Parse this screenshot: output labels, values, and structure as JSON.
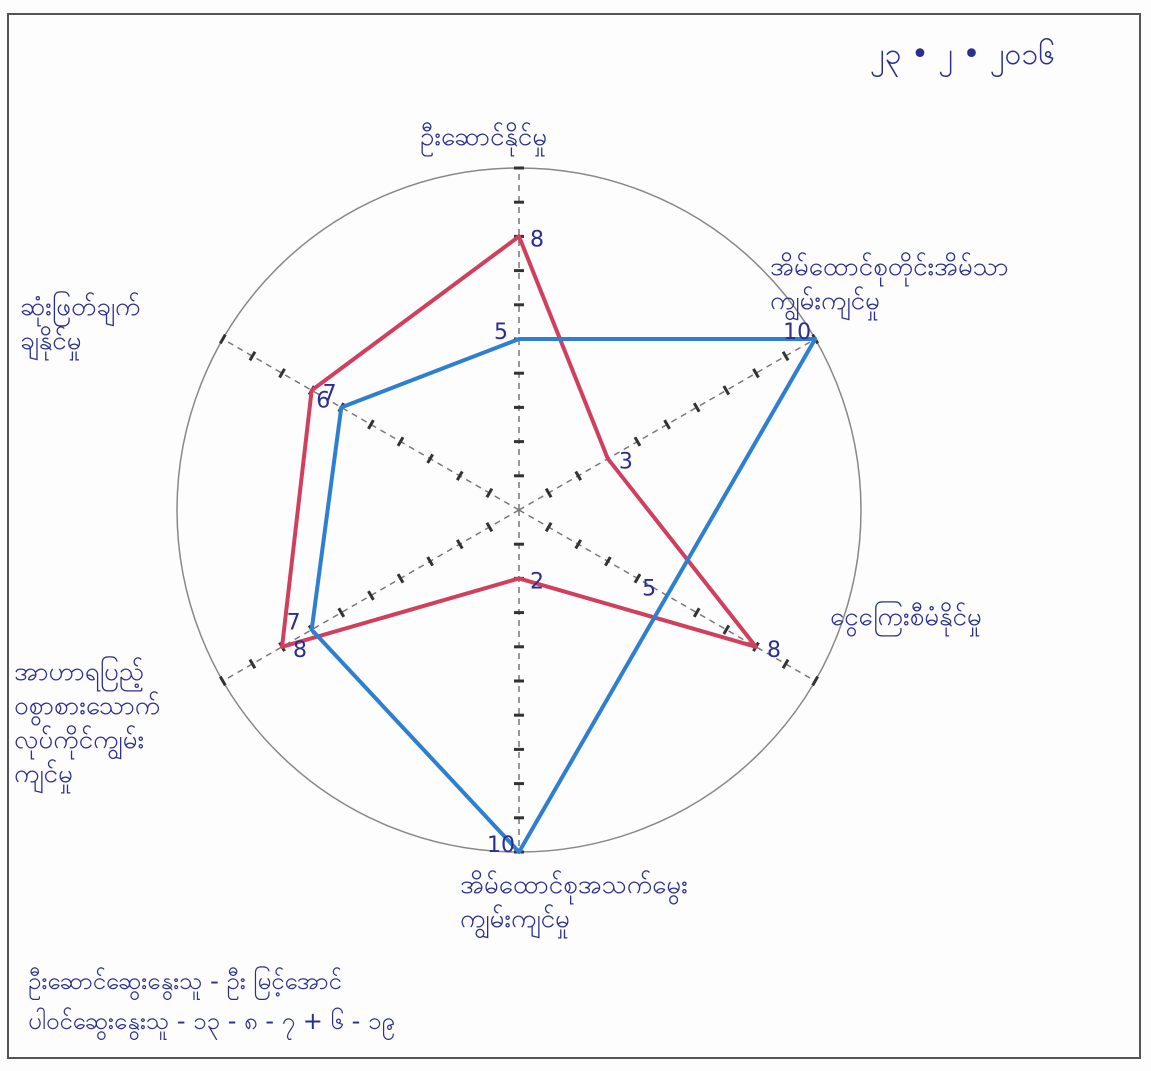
{
  "chart_data": {
    "type": "radar",
    "date": "၂၃ • ၂ • ၂၀၁၆",
    "categories": [
      "ဦးဆောင်နိုင်မှု",
      "အိမ်ထောင်စုတိုင်းအိမ်သာ\nကျွမ်းကျင်မှု",
      "ငွေကြေးစီမံနိုင်မှု",
      "အိမ်ထောင်စုအသက်မွေး\nကျွမ်းကျင်မှု",
      "အာဟာရပြည့်\nဝစွာစားသောက်\nလုပ်ကိုင်ကျွမ်း\nကျင်မှု",
      "ဆုံးဖြတ်ချက်\nချနိုင်မှု"
    ],
    "series": [
      {
        "color": "#d0405e",
        "values": [
          8,
          3,
          8,
          2,
          8,
          7
        ]
      },
      {
        "color": "#2f7fd0",
        "values": [
          5,
          10,
          5,
          10,
          7,
          6
        ]
      }
    ],
    "rlim": [
      0,
      10
    ],
    "rticks": [
      1,
      2,
      3,
      4,
      5,
      6,
      7,
      8,
      9,
      10
    ],
    "footer": [
      "ဦးဆောင်ဆွေးနွေးသူ - ဦး မြင့်အောင်",
      "ပါဝင်ဆွေးနွေးသူ - ၁၃ - ၈ - ၇ + ၆ - ၁၉"
    ]
  }
}
